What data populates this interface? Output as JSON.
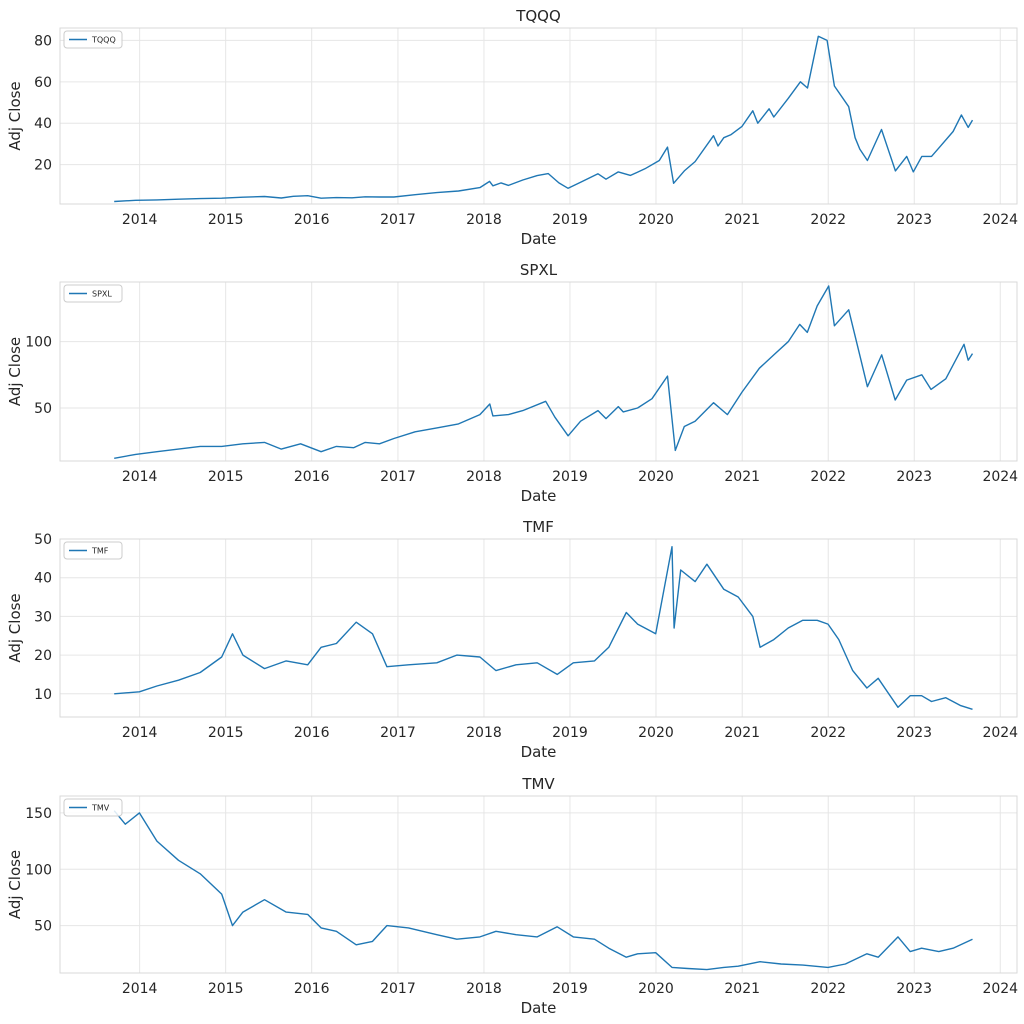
{
  "chart_data": [
    {
      "type": "line",
      "title": "TQQQ",
      "xlabel": "Date",
      "ylabel": "Adj Close",
      "legend": {
        "placement": "top-left",
        "entries": [
          "TQQQ"
        ]
      },
      "grid": true,
      "xlim": [
        "2013-01-28",
        "2024-03-12"
      ],
      "ylim": [
        1,
        86
      ],
      "xticks": [
        "2014",
        "2015",
        "2016",
        "2017",
        "2018",
        "2019",
        "2020",
        "2021",
        "2022",
        "2023",
        "2024"
      ],
      "yticks": [
        20,
        40,
        60,
        80
      ],
      "series": [
        {
          "name": "TQQQ",
          "color": "#1f77b4",
          "x": [
            "2013-09-15",
            "2013-12-15",
            "2014-03-15",
            "2014-06-15",
            "2014-09-15",
            "2014-12-15",
            "2015-03-15",
            "2015-06-15",
            "2015-08-25",
            "2015-10-15",
            "2015-12-15",
            "2016-02-10",
            "2016-04-15",
            "2016-06-20",
            "2016-08-15",
            "2016-10-15",
            "2016-12-15",
            "2017-03-15",
            "2017-06-15",
            "2017-09-15",
            "2017-12-15",
            "2018-01-25",
            "2018-02-08",
            "2018-03-15",
            "2018-04-15",
            "2018-06-15",
            "2018-08-15",
            "2018-10-01",
            "2018-11-15",
            "2018-12-24",
            "2019-02-15",
            "2019-04-30",
            "2019-06-03",
            "2019-07-25",
            "2019-09-15",
            "2019-11-15",
            "2020-01-15",
            "2020-02-19",
            "2020-03-16",
            "2020-04-30",
            "2020-06-15",
            "2020-09-01",
            "2020-09-20",
            "2020-10-15",
            "2020-11-15",
            "2020-12-31",
            "2021-02-15",
            "2021-03-08",
            "2021-04-25",
            "2021-05-15",
            "2021-07-15",
            "2021-09-05",
            "2021-10-05",
            "2021-11-20",
            "2021-12-27",
            "2022-01-27",
            "2022-03-29",
            "2022-04-25",
            "2022-05-15",
            "2022-06-16",
            "2022-08-15",
            "2022-10-13",
            "2022-11-30",
            "2022-12-28",
            "2023-02-02",
            "2023-03-15",
            "2023-04-15",
            "2023-06-15",
            "2023-07-20",
            "2023-08-18",
            "2023-09-05"
          ],
          "y": [
            2.2,
            2.8,
            3,
            3.3,
            3.6,
            3.8,
            4.3,
            4.6,
            3.9,
            4.7,
            5,
            3.8,
            4.1,
            4,
            4.5,
            4.4,
            4.4,
            5.5,
            6.5,
            7.3,
            8.9,
            11.9,
            9.8,
            11.2,
            10,
            12.6,
            14.7,
            15.7,
            11.2,
            8.6,
            11.5,
            15.6,
            13,
            16.5,
            14.8,
            18,
            22,
            28.5,
            11,
            17,
            21.5,
            34,
            29,
            33,
            34.5,
            38.5,
            46,
            40,
            47,
            43,
            52,
            60,
            57,
            82,
            80,
            58,
            48,
            33,
            27.5,
            22,
            37,
            17,
            24,
            16.5,
            24,
            24,
            28,
            36,
            44,
            38,
            41.5
          ]
        }
      ]
    },
    {
      "type": "line",
      "title": "SPXL",
      "xlabel": "Date",
      "ylabel": "Adj Close",
      "legend": {
        "placement": "top-left",
        "entries": [
          "SPXL"
        ]
      },
      "grid": true,
      "xlim": [
        "2013-01-28",
        "2024-03-12"
      ],
      "ylim": [
        10,
        145
      ],
      "xticks": [
        "2014",
        "2015",
        "2016",
        "2017",
        "2018",
        "2019",
        "2020",
        "2021",
        "2022",
        "2023",
        "2024"
      ],
      "yticks": [
        50,
        100
      ],
      "series": [
        {
          "name": "SPXL",
          "color": "#1f77b4",
          "x": [
            "2013-09-15",
            "2013-12-15",
            "2014-03-15",
            "2014-06-15",
            "2014-09-15",
            "2014-12-15",
            "2015-03-15",
            "2015-06-15",
            "2015-08-25",
            "2015-11-15",
            "2016-02-10",
            "2016-04-15",
            "2016-06-27",
            "2016-08-15",
            "2016-10-15",
            "2016-12-15",
            "2017-03-15",
            "2017-06-15",
            "2017-09-15",
            "2017-12-15",
            "2018-01-26",
            "2018-02-08",
            "2018-04-15",
            "2018-06-15",
            "2018-09-20",
            "2018-10-29",
            "2018-12-24",
            "2019-02-15",
            "2019-04-30",
            "2019-06-03",
            "2019-07-25",
            "2019-08-15",
            "2019-10-15",
            "2019-12-15",
            "2020-02-19",
            "2020-03-23",
            "2020-04-30",
            "2020-06-15",
            "2020-09-01",
            "2020-10-30",
            "2020-12-31",
            "2021-03-15",
            "2021-05-15",
            "2021-07-15",
            "2021-09-02",
            "2021-10-04",
            "2021-11-15",
            "2022-01-03",
            "2022-01-27",
            "2022-03-29",
            "2022-05-20",
            "2022-06-16",
            "2022-08-16",
            "2022-10-12",
            "2022-11-30",
            "2023-02-02",
            "2023-03-13",
            "2023-05-15",
            "2023-07-31",
            "2023-08-18",
            "2023-09-05"
          ],
          "y": [
            12,
            15,
            17,
            19,
            21,
            21,
            23,
            24,
            19,
            23,
            17,
            21,
            20,
            24,
            23,
            27,
            32,
            35,
            38,
            45,
            53,
            44,
            45,
            48,
            55,
            43,
            29,
            40,
            48,
            42,
            51,
            47,
            50,
            57,
            74,
            18,
            36,
            40,
            54,
            45,
            62,
            80,
            90,
            100,
            113,
            107,
            127,
            142,
            112,
            124,
            86,
            66,
            90,
            56,
            71,
            75,
            64,
            72,
            98,
            86,
            91
          ]
        }
      ]
    },
    {
      "type": "line",
      "title": "TMF",
      "xlabel": "Date",
      "ylabel": "Adj Close",
      "legend": {
        "placement": "top-left",
        "entries": [
          "TMF"
        ]
      },
      "grid": true,
      "xlim": [
        "2013-01-28",
        "2024-03-12"
      ],
      "ylim": [
        4,
        50
      ],
      "xticks": [
        "2014",
        "2015",
        "2016",
        "2017",
        "2018",
        "2019",
        "2020",
        "2021",
        "2022",
        "2023",
        "2024"
      ],
      "yticks": [
        10,
        20,
        30,
        40,
        50
      ],
      "series": [
        {
          "name": "TMF",
          "color": "#1f77b4",
          "x": [
            "2013-09-15",
            "2013-12-31",
            "2014-03-15",
            "2014-06-15",
            "2014-09-15",
            "2014-12-15",
            "2015-01-30",
            "2015-03-15",
            "2015-06-15",
            "2015-09-15",
            "2015-12-15",
            "2016-02-10",
            "2016-04-15",
            "2016-07-08",
            "2016-09-15",
            "2016-11-15",
            "2017-02-15",
            "2017-06-15",
            "2017-09-08",
            "2017-12-15",
            "2018-02-21",
            "2018-05-17",
            "2018-08-15",
            "2018-11-08",
            "2019-01-15",
            "2019-04-15",
            "2019-06-15",
            "2019-08-28",
            "2019-10-15",
            "2019-12-31",
            "2020-03-09",
            "2020-03-18",
            "2020-04-15",
            "2020-06-15",
            "2020-08-04",
            "2020-10-15",
            "2020-12-15",
            "2021-02-15",
            "2021-03-18",
            "2021-05-15",
            "2021-07-15",
            "2021-09-15",
            "2021-11-15",
            "2021-12-31",
            "2022-02-15",
            "2022-04-15",
            "2022-06-14",
            "2022-08-01",
            "2022-10-24",
            "2022-12-15",
            "2023-02-01",
            "2023-03-15",
            "2023-05-15",
            "2023-07-15",
            "2023-09-05"
          ],
          "y": [
            10,
            10.5,
            12,
            13.5,
            15.5,
            19.5,
            25.5,
            20,
            16.5,
            18.5,
            17.5,
            22,
            23,
            28.5,
            25.5,
            17,
            17.5,
            18,
            20,
            19.5,
            16,
            17.5,
            18,
            15,
            18,
            18.5,
            22,
            31,
            28,
            25.5,
            48,
            27,
            42,
            39,
            43.5,
            37,
            35,
            30,
            22,
            24,
            27,
            29,
            29,
            28,
            24,
            16,
            11.5,
            14,
            6.5,
            9.5,
            9.5,
            8,
            9,
            7,
            6
          ]
        }
      ]
    },
    {
      "type": "line",
      "title": "TMV",
      "xlabel": "Date",
      "ylabel": "Adj Close",
      "legend": {
        "placement": "top-left",
        "entries": [
          "TMV"
        ]
      },
      "grid": true,
      "xlim": [
        "2013-01-28",
        "2024-03-12"
      ],
      "ylim": [
        8,
        165
      ],
      "xticks": [
        "2014",
        "2015",
        "2016",
        "2017",
        "2018",
        "2019",
        "2020",
        "2021",
        "2022",
        "2023",
        "2024"
      ],
      "yticks": [
        50,
        100,
        150
      ],
      "series": [
        {
          "name": "TMV",
          "color": "#1f77b4",
          "x": [
            "2013-09-15",
            "2013-11-01",
            "2013-12-31",
            "2014-03-15",
            "2014-06-15",
            "2014-09-15",
            "2014-12-15",
            "2015-01-30",
            "2015-03-15",
            "2015-06-15",
            "2015-09-15",
            "2015-12-15",
            "2016-02-10",
            "2016-04-15",
            "2016-07-08",
            "2016-09-15",
            "2016-11-15",
            "2017-02-15",
            "2017-06-15",
            "2017-09-08",
            "2017-12-15",
            "2018-02-21",
            "2018-05-17",
            "2018-08-15",
            "2018-11-08",
            "2019-01-15",
            "2019-04-15",
            "2019-06-15",
            "2019-08-28",
            "2019-10-15",
            "2019-12-31",
            "2020-03-09",
            "2020-05-15",
            "2020-08-04",
            "2020-10-15",
            "2020-12-15",
            "2021-03-18",
            "2021-06-15",
            "2021-09-15",
            "2021-12-31",
            "2022-03-15",
            "2022-06-14",
            "2022-08-01",
            "2022-10-24",
            "2022-12-15",
            "2023-02-01",
            "2023-04-15",
            "2023-06-15",
            "2023-09-05"
          ],
          "y": [
            152,
            140,
            150,
            125,
            108,
            96,
            78,
            50,
            62,
            73,
            62,
            60,
            48,
            45,
            33,
            36,
            50,
            48,
            42,
            38,
            40,
            45,
            42,
            40,
            49,
            40,
            38,
            30,
            22,
            25,
            26,
            13,
            12,
            11,
            13,
            14,
            18,
            16,
            15,
            13,
            16,
            25,
            22,
            40,
            27,
            30,
            27,
            30,
            38
          ]
        }
      ]
    }
  ]
}
